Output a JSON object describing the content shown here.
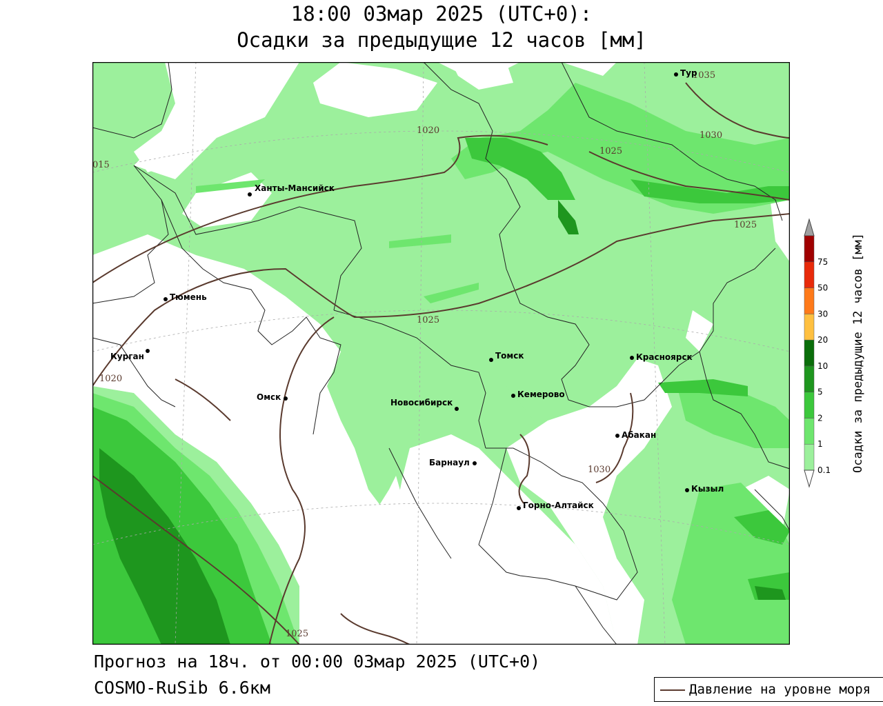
{
  "header": {
    "line1": "18:00 03мар 2025 (UTC+0):",
    "line2": "Осадки за предыдущие 12 часов [мм]"
  },
  "footer": {
    "forecast": "Прогноз на 18ч. от 00:00 03мар 2025 (UTC+0)",
    "model": "COSMO-RuSib 6.6км"
  },
  "legend": {
    "pressure_label": "Давление на уровне моря",
    "pressure_color": "#5a3a2e"
  },
  "colorbar": {
    "title": "Осадки за предыдущие 12 часов [мм]",
    "ticks": [
      "0.1",
      "1",
      "2",
      "5",
      "10",
      "20",
      "30",
      "50",
      "75"
    ],
    "colors": [
      "#9cf09c",
      "#6ee66e",
      "#3cc83c",
      "#1e961e",
      "#0a6e0a",
      "#ffc040",
      "#ff7a1a",
      "#e82a0a",
      "#a00000"
    ],
    "over_color": "#a0a0a0"
  },
  "isobars": [
    "1035",
    "1030",
    "1025",
    "1020",
    "015",
    "1025",
    "1025",
    "1020",
    "1030",
    "1025"
  ],
  "cities": [
    {
      "name": "Ханты-Мансийск"
    },
    {
      "name": "Тюмень"
    },
    {
      "name": "Курган"
    },
    {
      "name": "Омск"
    },
    {
      "name": "Новосибирск"
    },
    {
      "name": "Томск"
    },
    {
      "name": "Кемерово"
    },
    {
      "name": "Барнаул"
    },
    {
      "name": "Горно-Алтайск"
    },
    {
      "name": "Абакан"
    },
    {
      "name": "Красноярск"
    },
    {
      "name": "Кызыл"
    },
    {
      "name": "Тур"
    }
  ]
}
